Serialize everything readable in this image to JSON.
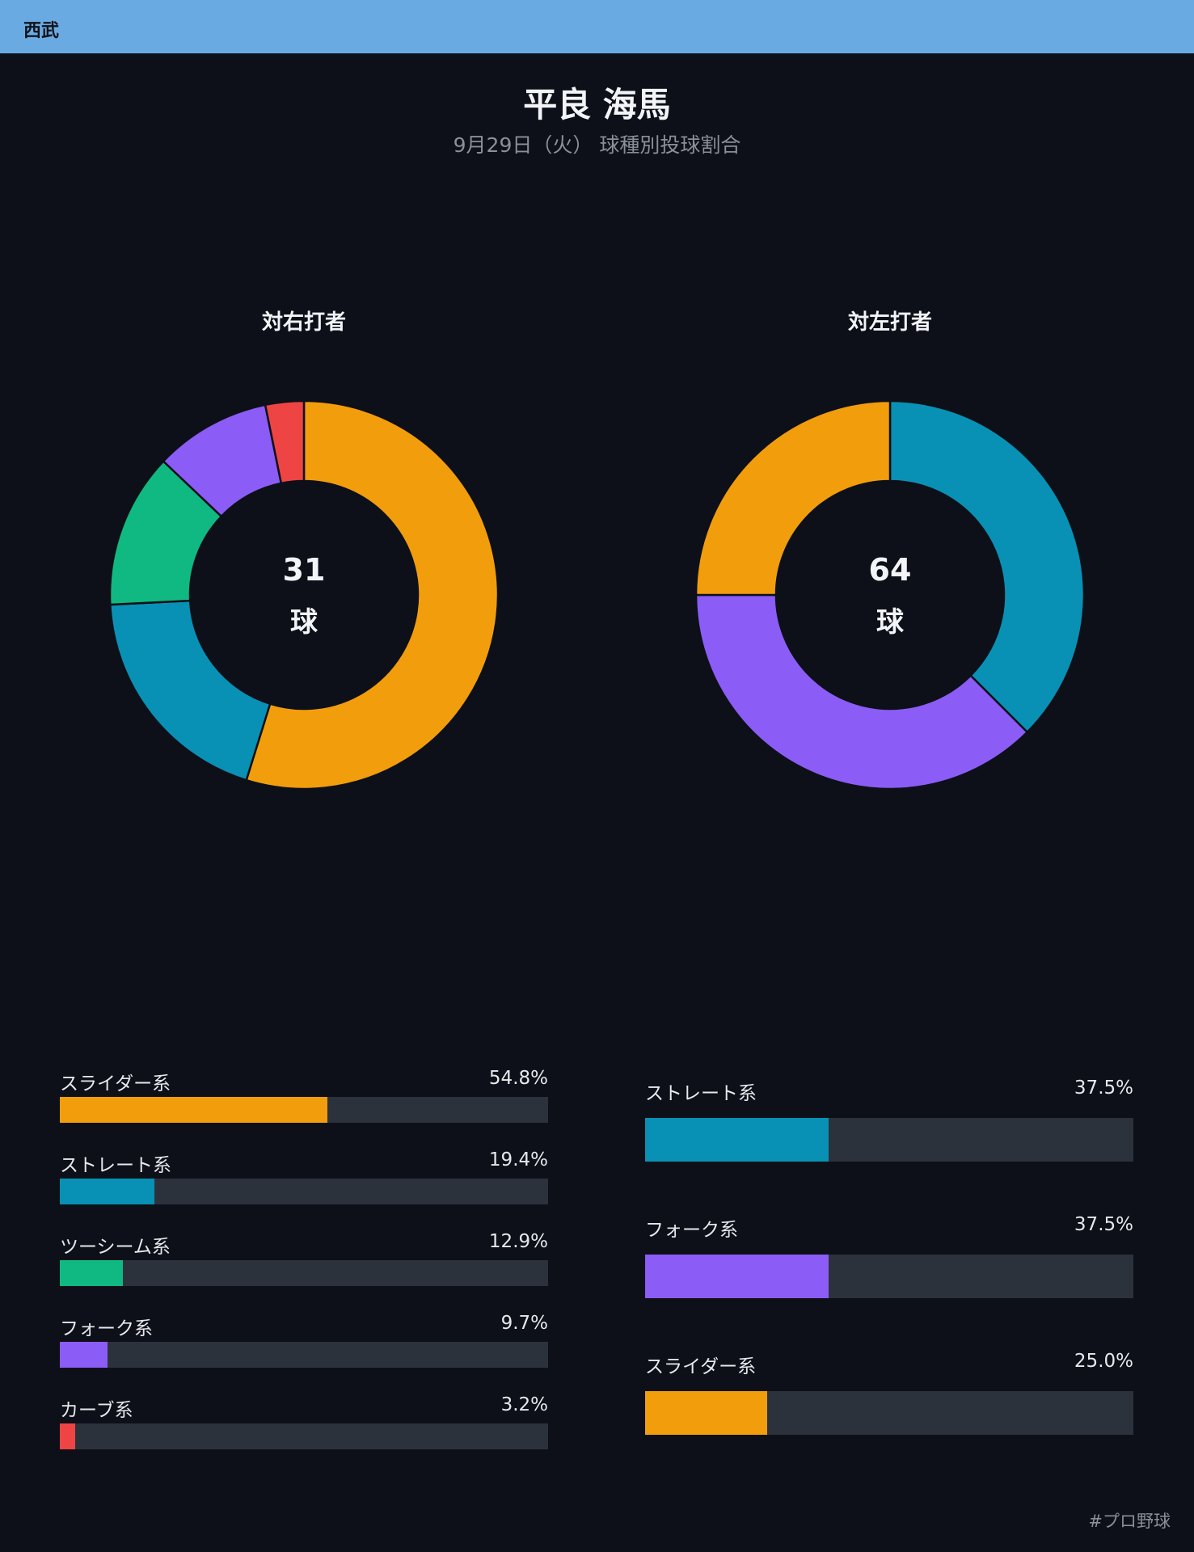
{
  "header": {
    "team": "西武"
  },
  "title": {
    "player": "平良 海馬",
    "subtitle": "9月29日（火） 球種別投球割合"
  },
  "chart_data": [
    {
      "type": "pie",
      "title": "対右打者",
      "total": "31",
      "unit": "球",
      "series": [
        {
          "name": "スライダー系",
          "value": 54.8,
          "label": "54.8%",
          "color": "#f29d0c"
        },
        {
          "name": "ストレート系",
          "value": 19.4,
          "label": "19.4%",
          "color": "#0891b5"
        },
        {
          "name": "ツーシーム系",
          "value": 12.9,
          "label": "12.9%",
          "color": "#10b981"
        },
        {
          "name": "フォーク系",
          "value": 9.7,
          "label": "9.7%",
          "color": "#8b5cf6"
        },
        {
          "name": "カーブ系",
          "value": 3.2,
          "label": "3.2%",
          "color": "#ef4444"
        }
      ]
    },
    {
      "type": "pie",
      "title": "対左打者",
      "total": "64",
      "unit": "球",
      "series": [
        {
          "name": "ストレート系",
          "value": 37.5,
          "label": "37.5%",
          "color": "#0891b5"
        },
        {
          "name": "フォーク系",
          "value": 37.5,
          "label": "37.5%",
          "color": "#8b5cf6"
        },
        {
          "name": "スライダー系",
          "value": 25.0,
          "label": "25.0%",
          "color": "#f29d0c"
        }
      ]
    }
  ],
  "colors": {
    "background": "#0d1018",
    "header": "#6aaae2",
    "track": "#2c323b"
  },
  "footer": {
    "hashtag": "#プロ野球"
  }
}
